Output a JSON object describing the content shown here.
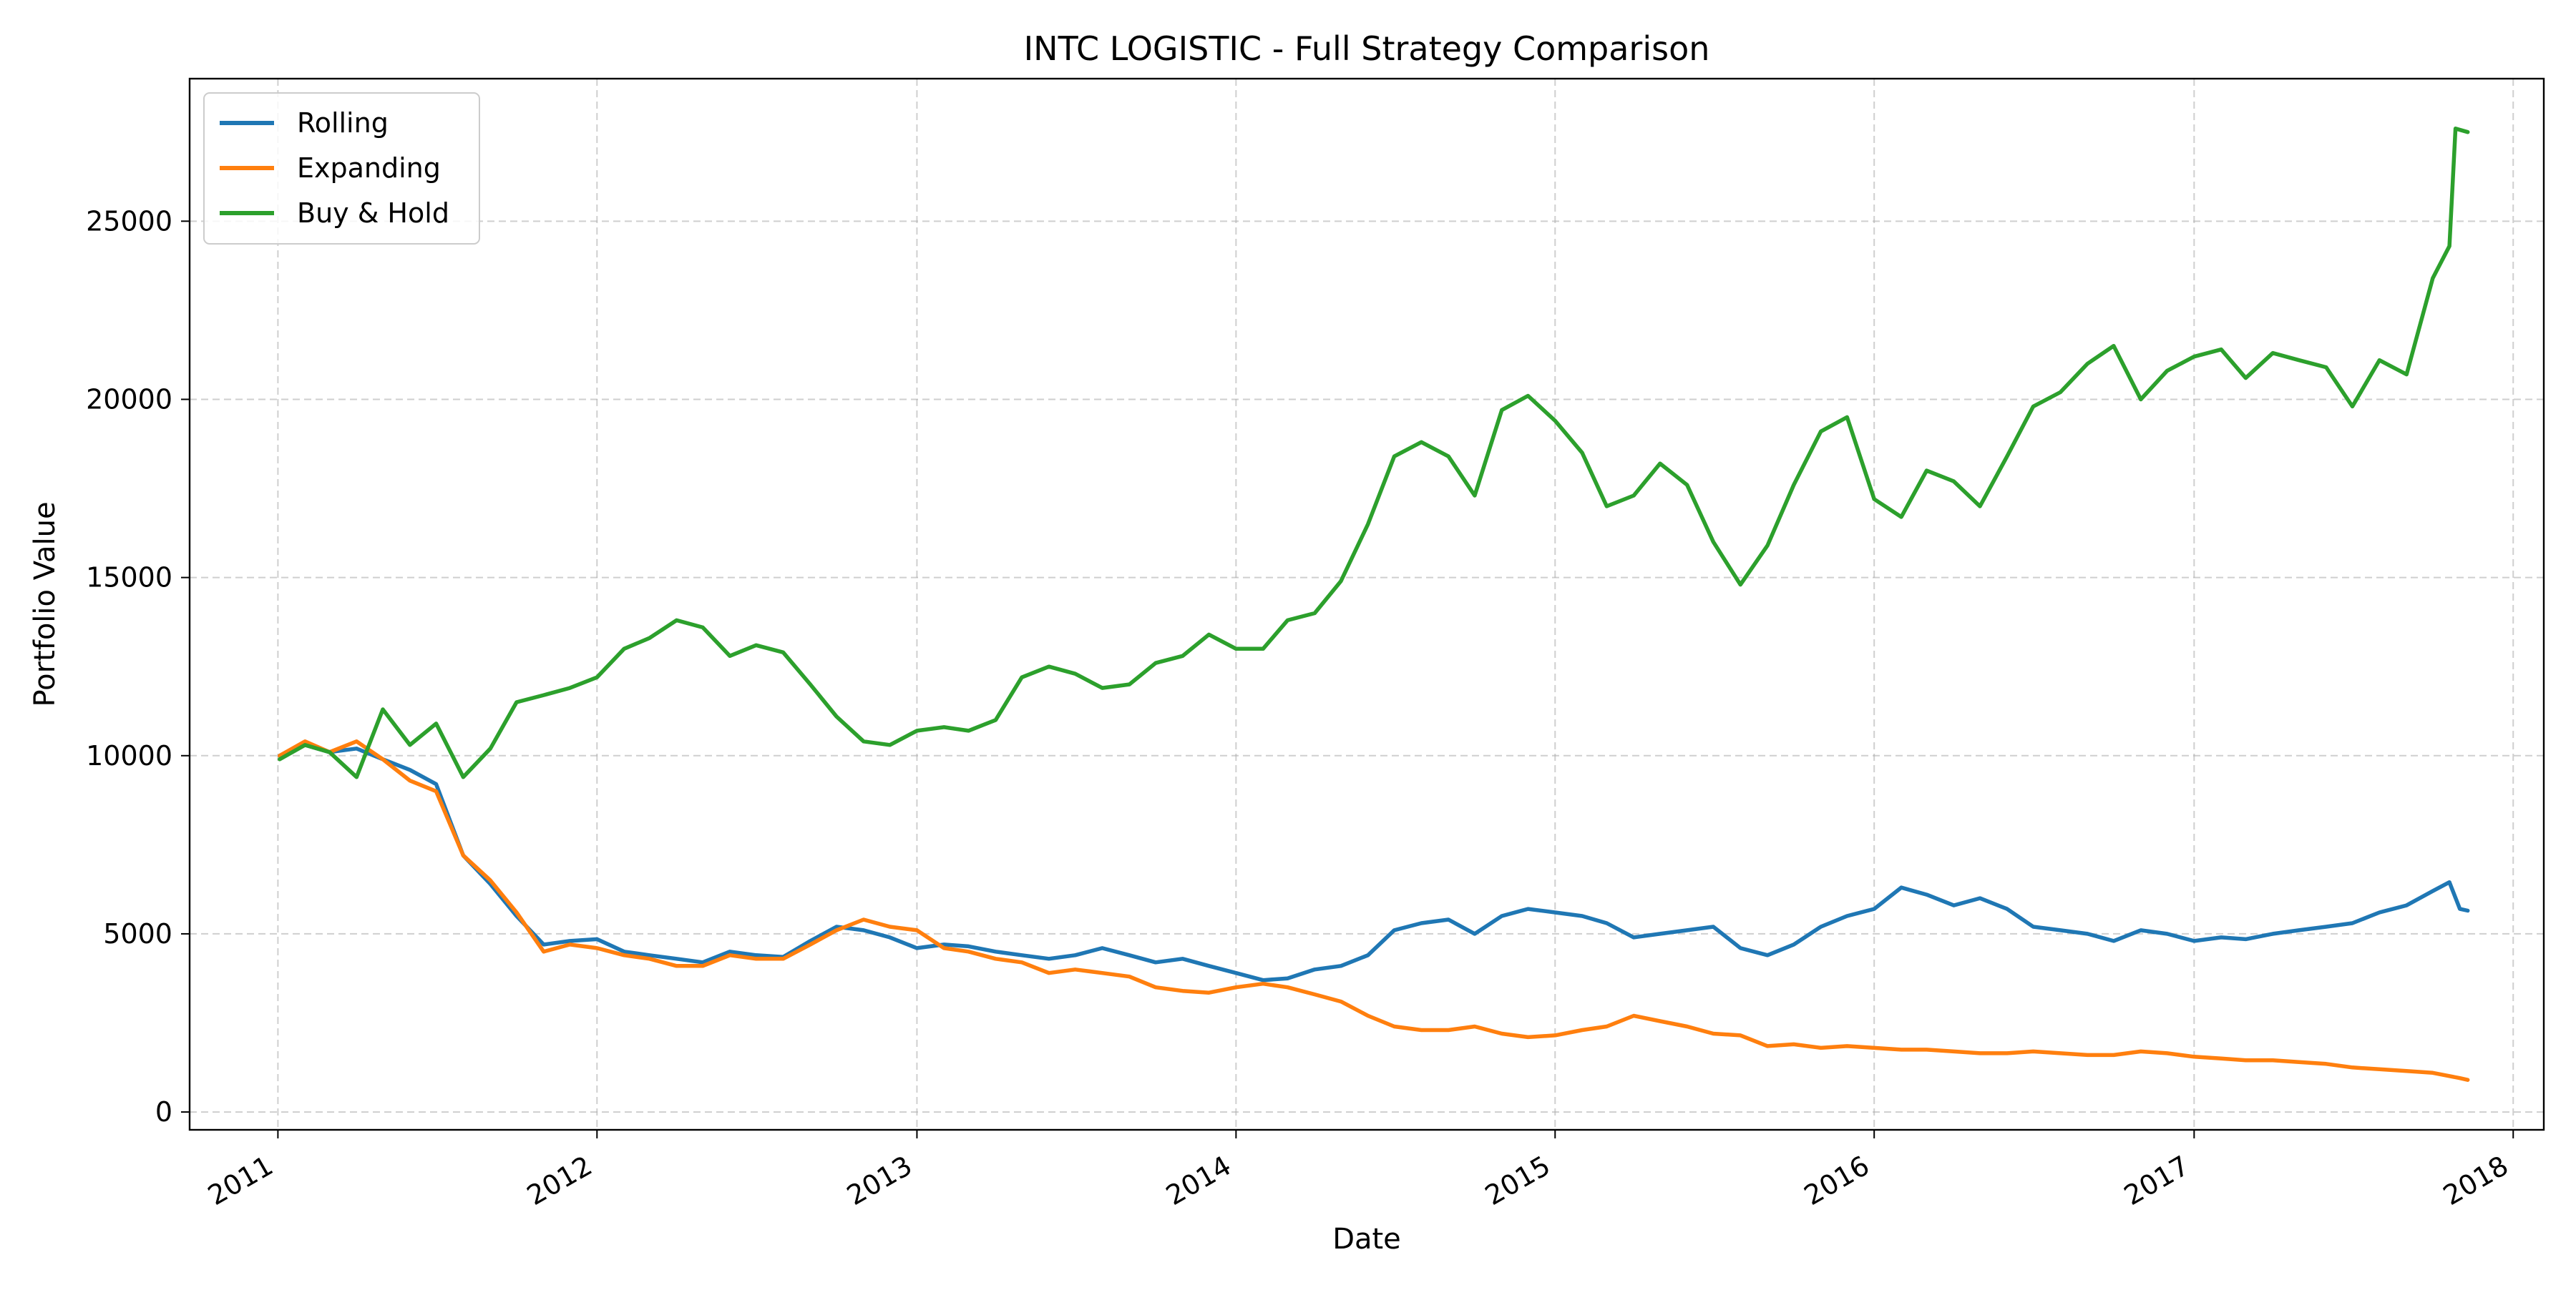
{
  "chart_data": {
    "type": "line",
    "title": "INTC LOGISTIC - Full Strategy Comparison",
    "xlabel": "Date",
    "ylabel": "Portfolio Value",
    "xlim": [
      "2010-09-22",
      "2018-02-05"
    ],
    "ylim": [
      -500,
      29000
    ],
    "x_ticks": [
      "2011",
      "2012",
      "2013",
      "2014",
      "2015",
      "2016",
      "2017",
      "2018"
    ],
    "x_tick_dates": [
      "2011-01-01",
      "2012-01-01",
      "2013-01-01",
      "2014-01-01",
      "2015-01-01",
      "2016-01-01",
      "2017-01-01",
      "2018-01-01"
    ],
    "y_ticks": [
      0,
      5000,
      10000,
      15000,
      20000,
      25000
    ],
    "grid": true,
    "legend_position": "top-left",
    "series": [
      {
        "name": "Rolling",
        "color": "#1f77b4",
        "points": [
          [
            "2011-01-03",
            10000
          ],
          [
            "2011-02-01",
            10300
          ],
          [
            "2011-03-01",
            10100
          ],
          [
            "2011-04-01",
            10200
          ],
          [
            "2011-05-01",
            9900
          ],
          [
            "2011-06-01",
            9600
          ],
          [
            "2011-07-01",
            9200
          ],
          [
            "2011-08-01",
            7200
          ],
          [
            "2011-09-01",
            6400
          ],
          [
            "2011-10-01",
            5500
          ],
          [
            "2011-11-01",
            4700
          ],
          [
            "2011-12-01",
            4800
          ],
          [
            "2012-01-01",
            4850
          ],
          [
            "2012-02-01",
            4500
          ],
          [
            "2012-03-01",
            4400
          ],
          [
            "2012-04-01",
            4300
          ],
          [
            "2012-05-01",
            4200
          ],
          [
            "2012-06-01",
            4500
          ],
          [
            "2012-07-01",
            4400
          ],
          [
            "2012-08-01",
            4350
          ],
          [
            "2012-09-01",
            4800
          ],
          [
            "2012-10-01",
            5200
          ],
          [
            "2012-11-01",
            5100
          ],
          [
            "2012-12-01",
            4900
          ],
          [
            "2013-01-01",
            4600
          ],
          [
            "2013-02-01",
            4700
          ],
          [
            "2013-03-01",
            4650
          ],
          [
            "2013-04-01",
            4500
          ],
          [
            "2013-05-01",
            4400
          ],
          [
            "2013-06-01",
            4300
          ],
          [
            "2013-07-01",
            4400
          ],
          [
            "2013-08-01",
            4600
          ],
          [
            "2013-09-01",
            4400
          ],
          [
            "2013-10-01",
            4200
          ],
          [
            "2013-11-01",
            4300
          ],
          [
            "2013-12-01",
            4100
          ],
          [
            "2014-01-01",
            3900
          ],
          [
            "2014-02-01",
            3700
          ],
          [
            "2014-03-01",
            3750
          ],
          [
            "2014-04-01",
            4000
          ],
          [
            "2014-05-01",
            4100
          ],
          [
            "2014-06-01",
            4400
          ],
          [
            "2014-07-01",
            5100
          ],
          [
            "2014-08-01",
            5300
          ],
          [
            "2014-09-01",
            5400
          ],
          [
            "2014-10-01",
            5000
          ],
          [
            "2014-11-01",
            5500
          ],
          [
            "2014-12-01",
            5700
          ],
          [
            "2015-01-01",
            5600
          ],
          [
            "2015-02-01",
            5500
          ],
          [
            "2015-03-01",
            5300
          ],
          [
            "2015-04-01",
            4900
          ],
          [
            "2015-05-01",
            5000
          ],
          [
            "2015-06-01",
            5100
          ],
          [
            "2015-07-01",
            5200
          ],
          [
            "2015-08-01",
            4600
          ],
          [
            "2015-09-01",
            4400
          ],
          [
            "2015-10-01",
            4700
          ],
          [
            "2015-11-01",
            5200
          ],
          [
            "2015-12-01",
            5500
          ],
          [
            "2016-01-01",
            5700
          ],
          [
            "2016-02-01",
            6300
          ],
          [
            "2016-03-01",
            6100
          ],
          [
            "2016-04-01",
            5800
          ],
          [
            "2016-05-01",
            6000
          ],
          [
            "2016-06-01",
            5700
          ],
          [
            "2016-07-01",
            5200
          ],
          [
            "2016-08-01",
            5100
          ],
          [
            "2016-09-01",
            5000
          ],
          [
            "2016-10-01",
            4800
          ],
          [
            "2016-11-01",
            5100
          ],
          [
            "2016-12-01",
            5000
          ],
          [
            "2017-01-01",
            4800
          ],
          [
            "2017-02-01",
            4900
          ],
          [
            "2017-03-01",
            4850
          ],
          [
            "2017-04-01",
            5000
          ],
          [
            "2017-05-01",
            5100
          ],
          [
            "2017-06-01",
            5200
          ],
          [
            "2017-07-01",
            5300
          ],
          [
            "2017-08-01",
            5600
          ],
          [
            "2017-09-01",
            5800
          ],
          [
            "2017-10-01",
            6200
          ],
          [
            "2017-10-20",
            6450
          ],
          [
            "2017-11-01",
            5700
          ],
          [
            "2017-11-10",
            5650
          ]
        ]
      },
      {
        "name": "Expanding",
        "color": "#ff7f0e",
        "points": [
          [
            "2011-01-03",
            10000
          ],
          [
            "2011-02-01",
            10400
          ],
          [
            "2011-03-01",
            10100
          ],
          [
            "2011-04-01",
            10400
          ],
          [
            "2011-05-01",
            9900
          ],
          [
            "2011-06-01",
            9300
          ],
          [
            "2011-07-01",
            9000
          ],
          [
            "2011-08-01",
            7200
          ],
          [
            "2011-09-01",
            6500
          ],
          [
            "2011-10-01",
            5600
          ],
          [
            "2011-11-01",
            4500
          ],
          [
            "2011-12-01",
            4700
          ],
          [
            "2012-01-01",
            4600
          ],
          [
            "2012-02-01",
            4400
          ],
          [
            "2012-03-01",
            4300
          ],
          [
            "2012-04-01",
            4100
          ],
          [
            "2012-05-01",
            4100
          ],
          [
            "2012-06-01",
            4400
          ],
          [
            "2012-07-01",
            4300
          ],
          [
            "2012-08-01",
            4300
          ],
          [
            "2012-09-01",
            4700
          ],
          [
            "2012-10-01",
            5100
          ],
          [
            "2012-11-01",
            5400
          ],
          [
            "2012-12-01",
            5200
          ],
          [
            "2013-01-01",
            5100
          ],
          [
            "2013-02-01",
            4600
          ],
          [
            "2013-03-01",
            4500
          ],
          [
            "2013-04-01",
            4300
          ],
          [
            "2013-05-01",
            4200
          ],
          [
            "2013-06-01",
            3900
          ],
          [
            "2013-07-01",
            4000
          ],
          [
            "2013-08-01",
            3900
          ],
          [
            "2013-09-01",
            3800
          ],
          [
            "2013-10-01",
            3500
          ],
          [
            "2013-11-01",
            3400
          ],
          [
            "2013-12-01",
            3350
          ],
          [
            "2014-01-01",
            3500
          ],
          [
            "2014-02-01",
            3600
          ],
          [
            "2014-03-01",
            3500
          ],
          [
            "2014-04-01",
            3300
          ],
          [
            "2014-05-01",
            3100
          ],
          [
            "2014-06-01",
            2700
          ],
          [
            "2014-07-01",
            2400
          ],
          [
            "2014-08-01",
            2300
          ],
          [
            "2014-09-01",
            2300
          ],
          [
            "2014-10-01",
            2400
          ],
          [
            "2014-11-01",
            2200
          ],
          [
            "2014-12-01",
            2100
          ],
          [
            "2015-01-01",
            2150
          ],
          [
            "2015-02-01",
            2300
          ],
          [
            "2015-03-01",
            2400
          ],
          [
            "2015-04-01",
            2700
          ],
          [
            "2015-05-01",
            2550
          ],
          [
            "2015-06-01",
            2400
          ],
          [
            "2015-07-01",
            2200
          ],
          [
            "2015-08-01",
            2150
          ],
          [
            "2015-09-01",
            1850
          ],
          [
            "2015-10-01",
            1900
          ],
          [
            "2015-11-01",
            1800
          ],
          [
            "2015-12-01",
            1850
          ],
          [
            "2016-01-01",
            1800
          ],
          [
            "2016-02-01",
            1750
          ],
          [
            "2016-03-01",
            1750
          ],
          [
            "2016-04-01",
            1700
          ],
          [
            "2016-05-01",
            1650
          ],
          [
            "2016-06-01",
            1650
          ],
          [
            "2016-07-01",
            1700
          ],
          [
            "2016-08-01",
            1650
          ],
          [
            "2016-09-01",
            1600
          ],
          [
            "2016-10-01",
            1600
          ],
          [
            "2016-11-01",
            1700
          ],
          [
            "2016-12-01",
            1650
          ],
          [
            "2017-01-01",
            1550
          ],
          [
            "2017-02-01",
            1500
          ],
          [
            "2017-03-01",
            1450
          ],
          [
            "2017-04-01",
            1450
          ],
          [
            "2017-05-01",
            1400
          ],
          [
            "2017-06-01",
            1350
          ],
          [
            "2017-07-01",
            1250
          ],
          [
            "2017-08-01",
            1200
          ],
          [
            "2017-09-01",
            1150
          ],
          [
            "2017-10-01",
            1100
          ],
          [
            "2017-11-01",
            950
          ],
          [
            "2017-11-10",
            900
          ]
        ]
      },
      {
        "name": "Buy & Hold",
        "color": "#2ca02c",
        "points": [
          [
            "2011-01-03",
            9900
          ],
          [
            "2011-02-01",
            10300
          ],
          [
            "2011-03-01",
            10100
          ],
          [
            "2011-04-01",
            9400
          ],
          [
            "2011-05-01",
            11300
          ],
          [
            "2011-06-01",
            10300
          ],
          [
            "2011-07-01",
            10900
          ],
          [
            "2011-08-01",
            9400
          ],
          [
            "2011-09-01",
            10200
          ],
          [
            "2011-10-01",
            11500
          ],
          [
            "2011-11-01",
            11700
          ],
          [
            "2011-12-01",
            11900
          ],
          [
            "2012-01-01",
            12200
          ],
          [
            "2012-02-01",
            13000
          ],
          [
            "2012-03-01",
            13300
          ],
          [
            "2012-04-01",
            13800
          ],
          [
            "2012-05-01",
            13600
          ],
          [
            "2012-06-01",
            12800
          ],
          [
            "2012-07-01",
            13100
          ],
          [
            "2012-08-01",
            12900
          ],
          [
            "2012-09-01",
            12000
          ],
          [
            "2012-10-01",
            11100
          ],
          [
            "2012-11-01",
            10400
          ],
          [
            "2012-12-01",
            10300
          ],
          [
            "2013-01-01",
            10700
          ],
          [
            "2013-02-01",
            10800
          ],
          [
            "2013-03-01",
            10700
          ],
          [
            "2013-04-01",
            11000
          ],
          [
            "2013-05-01",
            12200
          ],
          [
            "2013-06-01",
            12500
          ],
          [
            "2013-07-01",
            12300
          ],
          [
            "2013-08-01",
            11900
          ],
          [
            "2013-09-01",
            12000
          ],
          [
            "2013-10-01",
            12600
          ],
          [
            "2013-11-01",
            12800
          ],
          [
            "2013-12-01",
            13400
          ],
          [
            "2014-01-01",
            13000
          ],
          [
            "2014-02-01",
            13000
          ],
          [
            "2014-03-01",
            13800
          ],
          [
            "2014-04-01",
            14000
          ],
          [
            "2014-05-01",
            14900
          ],
          [
            "2014-06-01",
            16500
          ],
          [
            "2014-07-01",
            18400
          ],
          [
            "2014-08-01",
            18800
          ],
          [
            "2014-09-01",
            18400
          ],
          [
            "2014-10-01",
            17300
          ],
          [
            "2014-11-01",
            19700
          ],
          [
            "2014-12-01",
            20100
          ],
          [
            "2015-01-01",
            19400
          ],
          [
            "2015-02-01",
            18500
          ],
          [
            "2015-03-01",
            17000
          ],
          [
            "2015-04-01",
            17300
          ],
          [
            "2015-05-01",
            18200
          ],
          [
            "2015-06-01",
            17600
          ],
          [
            "2015-07-01",
            16000
          ],
          [
            "2015-08-01",
            14800
          ],
          [
            "2015-09-01",
            15900
          ],
          [
            "2015-10-01",
            17600
          ],
          [
            "2015-11-01",
            19100
          ],
          [
            "2015-12-01",
            19500
          ],
          [
            "2016-01-01",
            17200
          ],
          [
            "2016-02-01",
            16700
          ],
          [
            "2016-03-01",
            18000
          ],
          [
            "2016-04-01",
            17700
          ],
          [
            "2016-05-01",
            17000
          ],
          [
            "2016-06-01",
            18400
          ],
          [
            "2016-07-01",
            19800
          ],
          [
            "2016-08-01",
            20200
          ],
          [
            "2016-09-01",
            21000
          ],
          [
            "2016-10-01",
            21500
          ],
          [
            "2016-11-01",
            20000
          ],
          [
            "2016-12-01",
            20800
          ],
          [
            "2017-01-01",
            21200
          ],
          [
            "2017-02-01",
            21400
          ],
          [
            "2017-03-01",
            20600
          ],
          [
            "2017-04-01",
            21300
          ],
          [
            "2017-05-01",
            21100
          ],
          [
            "2017-06-01",
            20900
          ],
          [
            "2017-07-01",
            19800
          ],
          [
            "2017-08-01",
            21100
          ],
          [
            "2017-09-01",
            20700
          ],
          [
            "2017-10-01",
            23400
          ],
          [
            "2017-10-20",
            24300
          ],
          [
            "2017-10-27",
            27600
          ],
          [
            "2017-11-10",
            27500
          ]
        ]
      }
    ]
  }
}
